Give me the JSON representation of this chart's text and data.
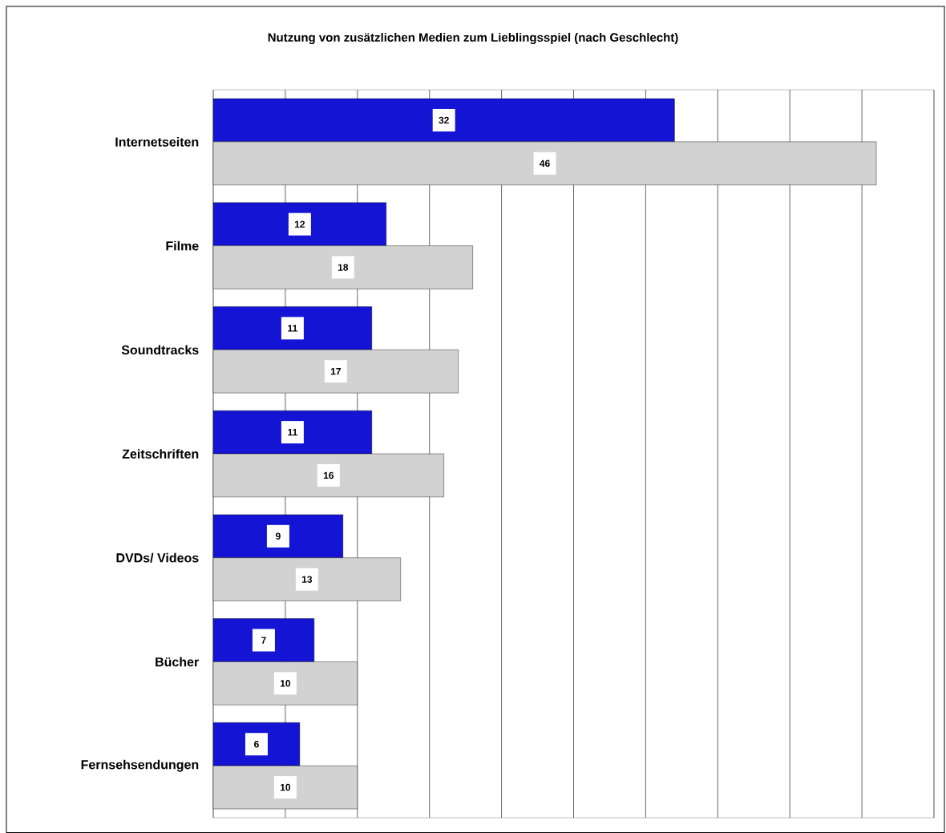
{
  "chart_data": {
    "type": "bar",
    "orientation": "horizontal",
    "title": "Nutzung von zusätzlichen Medien zum Lieblingsspiel (nach Geschlecht)",
    "categories": [
      "Internetseiten",
      "Filme",
      "Soundtracks",
      "Zeitschriften",
      "DVDs/ Videos",
      "Bücher",
      "Fernsehsendungen"
    ],
    "series": [
      {
        "color": "#1414d4",
        "values": [
          32,
          12,
          11,
          11,
          9,
          7,
          6
        ]
      },
      {
        "color": "#d2d2d2",
        "values": [
          46,
          18,
          17,
          16,
          13,
          10,
          10
        ]
      }
    ],
    "xlim": [
      0,
      50
    ],
    "xticks": [
      {
        "value": 0,
        "label": null
      },
      {
        "value": 5,
        "label": null
      },
      {
        "value": 10,
        "label": null
      },
      {
        "value": 15,
        "label": null
      },
      {
        "value": 20,
        "label": null
      },
      {
        "value": 25,
        "label": null
      },
      {
        "value": 30,
        "label": null
      },
      {
        "value": 35,
        "label": null
      },
      {
        "value": 40,
        "label": null
      },
      {
        "value": 45,
        "label": null
      },
      {
        "value": 50,
        "label": null
      }
    ],
    "tick_labels": "y",
    "grid": "x",
    "data_labels": true
  }
}
